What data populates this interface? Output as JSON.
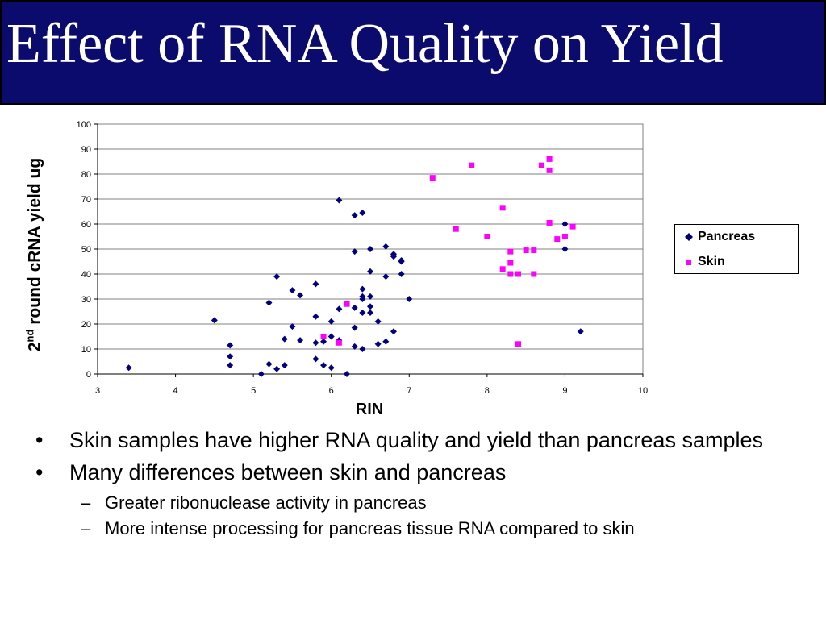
{
  "slide": {
    "title": "Effect of RNA Quality on Yield",
    "bullets": [
      {
        "text": "Skin samples have higher RNA quality and yield than pancreas samples",
        "sub": []
      },
      {
        "text": "Many differences between skin and pancreas",
        "sub": [
          "Greater ribonuclease activity in pancreas",
          "More intense processing for pancreas tissue RNA compared to skin"
        ]
      }
    ]
  },
  "chart_data": {
    "type": "scatter",
    "xlabel": "RIN",
    "ylabel_pre": "2",
    "ylabel_sup": "nd",
    "ylabel_post": " round cRNA yield ug",
    "xlim": [
      3,
      10
    ],
    "ylim": [
      0,
      100
    ],
    "xticks": [
      3,
      4,
      5,
      6,
      7,
      8,
      9,
      10
    ],
    "yticks": [
      0,
      10,
      20,
      30,
      40,
      50,
      60,
      70,
      80,
      90,
      100
    ],
    "grid": "horizontal",
    "legend_position": "right",
    "series": [
      {
        "name": "Pancreas",
        "marker": "diamond",
        "color": "#000080",
        "points": [
          [
            3.4,
            2.5
          ],
          [
            4.5,
            21.5
          ],
          [
            4.7,
            11.5
          ],
          [
            4.7,
            7
          ],
          [
            4.7,
            3.5
          ],
          [
            5.1,
            0
          ],
          [
            5.2,
            28.5
          ],
          [
            5.2,
            4
          ],
          [
            5.3,
            39
          ],
          [
            5.3,
            2
          ],
          [
            5.4,
            14
          ],
          [
            5.4,
            3.5
          ],
          [
            5.5,
            33.5
          ],
          [
            5.5,
            19
          ],
          [
            5.6,
            31.5
          ],
          [
            5.6,
            13.5
          ],
          [
            5.8,
            36
          ],
          [
            5.8,
            23
          ],
          [
            5.8,
            12.5
          ],
          [
            5.8,
            6
          ],
          [
            5.9,
            13
          ],
          [
            5.9,
            3.5
          ],
          [
            6.0,
            21
          ],
          [
            6.0,
            15
          ],
          [
            6.0,
            2.5
          ],
          [
            6.1,
            69.5
          ],
          [
            6.1,
            26
          ],
          [
            6.1,
            13.5
          ],
          [
            6.2,
            0
          ],
          [
            6.3,
            63.5
          ],
          [
            6.3,
            49
          ],
          [
            6.3,
            26.5
          ],
          [
            6.3,
            18.5
          ],
          [
            6.3,
            11
          ],
          [
            6.4,
            64.5
          ],
          [
            6.4,
            34
          ],
          [
            6.4,
            31
          ],
          [
            6.4,
            30
          ],
          [
            6.4,
            24.5
          ],
          [
            6.4,
            10
          ],
          [
            6.5,
            50
          ],
          [
            6.5,
            41
          ],
          [
            6.5,
            31
          ],
          [
            6.5,
            27
          ],
          [
            6.5,
            24.5
          ],
          [
            6.6,
            21
          ],
          [
            6.6,
            12
          ],
          [
            6.7,
            51
          ],
          [
            6.7,
            39
          ],
          [
            6.7,
            13
          ],
          [
            6.8,
            48
          ],
          [
            6.8,
            47
          ],
          [
            6.8,
            17
          ],
          [
            6.9,
            45.5
          ],
          [
            6.9,
            45
          ],
          [
            6.9,
            40
          ],
          [
            7.0,
            30
          ],
          [
            9.0,
            60
          ],
          [
            9.0,
            50
          ],
          [
            9.2,
            17
          ]
        ]
      },
      {
        "name": "Skin",
        "marker": "square",
        "color": "#ff00ff",
        "points": [
          [
            5.9,
            15
          ],
          [
            6.1,
            12.5
          ],
          [
            6.2,
            28
          ],
          [
            7.3,
            78.5
          ],
          [
            7.6,
            58
          ],
          [
            7.8,
            83.5
          ],
          [
            8.0,
            55
          ],
          [
            8.2,
            66.5
          ],
          [
            8.2,
            42
          ],
          [
            8.3,
            49
          ],
          [
            8.3,
            44.5
          ],
          [
            8.3,
            40
          ],
          [
            8.4,
            40
          ],
          [
            8.4,
            12
          ],
          [
            8.5,
            49.5
          ],
          [
            8.6,
            49.5
          ],
          [
            8.6,
            40
          ],
          [
            8.7,
            83.5
          ],
          [
            8.8,
            86
          ],
          [
            8.8,
            81.5
          ],
          [
            8.8,
            60.5
          ],
          [
            8.9,
            54
          ],
          [
            9.0,
            55
          ],
          [
            9.1,
            59
          ]
        ]
      }
    ]
  }
}
